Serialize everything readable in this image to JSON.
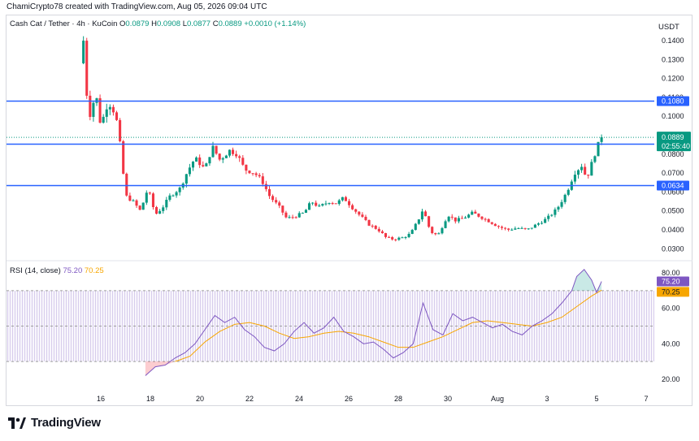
{
  "header": {
    "caption": "ChamiCrypto78 created with TradingView.com, Aug 05, 2026 09:04 UTC"
  },
  "ohlc": {
    "symbol": "Cash Cat / Tether · 4h · KuCoin",
    "o_label": "O",
    "o": "0.0879",
    "h_label": "H",
    "h": "0.0908",
    "l_label": "L",
    "l": "0.0877",
    "c_label": "C",
    "c": "0.0889",
    "change": "+0.0010 (+1.14%)"
  },
  "rsi_title": {
    "label": "RSI (14, close)",
    "rsi": "75.20",
    "ma": "70.25"
  },
  "currency": "USDT",
  "logo_text": "TradingView",
  "colors": {
    "up": "#089981",
    "down": "#f23645",
    "level": "#2962ff",
    "rsi": "#7e57c2",
    "rsi_ma": "#f7a600"
  },
  "chart_data": [
    {
      "type": "candlestick",
      "title": "Cash Cat / Tether · 4h · KuCoin",
      "x_ticks": [
        "16",
        "18",
        "20",
        "22",
        "24",
        "26",
        "28",
        "30",
        "Aug",
        "3",
        "5",
        "7"
      ],
      "y_ticks": [
        "0.1400",
        "0.1300",
        "0.1200",
        "0.1100",
        "0.1000",
        "0.0900",
        "0.0800",
        "0.0700",
        "0.0600",
        "0.0500",
        "0.0400",
        "0.0300"
      ],
      "ylim": [
        0.025,
        0.152
      ],
      "horizontal_levels": [
        {
          "value": 0.108,
          "label": "0.1080"
        },
        {
          "value": 0.0853,
          "label": "0.0853"
        },
        {
          "value": 0.0634,
          "label": "0.0634"
        }
      ],
      "last_price": {
        "value": 0.0889,
        "label": "0.0889",
        "countdown": "02:55:40"
      },
      "close_path": [
        [
          15.3,
          0.14
        ],
        [
          15.5,
          0.098
        ],
        [
          15.8,
          0.112
        ],
        [
          16.0,
          0.095
        ],
        [
          16.3,
          0.108
        ],
        [
          16.6,
          0.101
        ],
        [
          16.8,
          0.083
        ],
        [
          17.0,
          0.058
        ],
        [
          17.3,
          0.055
        ],
        [
          17.6,
          0.05
        ],
        [
          17.9,
          0.062
        ],
        [
          18.2,
          0.048
        ],
        [
          18.5,
          0.052
        ],
        [
          18.8,
          0.058
        ],
        [
          19.2,
          0.062
        ],
        [
          19.5,
          0.071
        ],
        [
          19.8,
          0.078
        ],
        [
          20.2,
          0.072
        ],
        [
          20.5,
          0.084
        ],
        [
          20.8,
          0.077
        ],
        [
          21.2,
          0.082
        ],
        [
          21.5,
          0.08
        ],
        [
          21.8,
          0.072
        ],
        [
          22.2,
          0.07
        ],
        [
          22.5,
          0.066
        ],
        [
          22.8,
          0.058
        ],
        [
          23.2,
          0.052
        ],
        [
          23.5,
          0.046
        ],
        [
          23.8,
          0.047
        ],
        [
          24.2,
          0.049
        ],
        [
          24.5,
          0.055
        ],
        [
          24.8,
          0.052
        ],
        [
          25.2,
          0.055
        ],
        [
          25.5,
          0.054
        ],
        [
          25.8,
          0.057
        ],
        [
          26.2,
          0.051
        ],
        [
          26.5,
          0.047
        ],
        [
          26.8,
          0.043
        ],
        [
          27.2,
          0.04
        ],
        [
          27.5,
          0.036
        ],
        [
          27.8,
          0.035
        ],
        [
          28.2,
          0.036
        ],
        [
          28.5,
          0.038
        ],
        [
          28.8,
          0.045
        ],
        [
          29.0,
          0.051
        ],
        [
          29.3,
          0.039
        ],
        [
          29.6,
          0.037
        ],
        [
          30.0,
          0.048
        ],
        [
          30.3,
          0.045
        ],
        [
          30.6,
          0.046
        ],
        [
          31.0,
          0.049
        ],
        [
          31.3,
          0.047
        ],
        [
          31.6,
          0.045
        ],
        [
          32.0,
          0.042
        ],
        [
          32.4,
          0.04
        ],
        [
          32.8,
          0.041
        ],
        [
          33.2,
          0.04
        ],
        [
          33.6,
          0.043
        ],
        [
          34.0,
          0.046
        ],
        [
          34.4,
          0.051
        ],
        [
          34.8,
          0.06
        ],
        [
          35.1,
          0.07
        ],
        [
          35.4,
          0.074
        ],
        [
          35.6,
          0.067
        ],
        [
          35.8,
          0.075
        ],
        [
          36.0,
          0.083
        ],
        [
          36.2,
          0.0889
        ]
      ],
      "candles": 157
    },
    {
      "type": "line",
      "title": "RSI (14, close)",
      "y_ticks": [
        "80.00",
        "60.00",
        "40.00",
        "20.00"
      ],
      "ylim": [
        14,
        86
      ],
      "band": [
        30,
        70
      ],
      "series": [
        {
          "name": "RSI",
          "values": [
            [
              17.8,
              22
            ],
            [
              18.2,
              27
            ],
            [
              18.6,
              28
            ],
            [
              19.0,
              32
            ],
            [
              19.4,
              35
            ],
            [
              19.8,
              40
            ],
            [
              20.2,
              48
            ],
            [
              20.6,
              56
            ],
            [
              21.0,
              52
            ],
            [
              21.4,
              55
            ],
            [
              21.8,
              48
            ],
            [
              22.2,
              44
            ],
            [
              22.6,
              38
            ],
            [
              23.0,
              36
            ],
            [
              23.4,
              40
            ],
            [
              23.8,
              47
            ],
            [
              24.2,
              52
            ],
            [
              24.6,
              46
            ],
            [
              25.0,
              49
            ],
            [
              25.4,
              55
            ],
            [
              25.8,
              47
            ],
            [
              26.2,
              44
            ],
            [
              26.6,
              40
            ],
            [
              27.0,
              41
            ],
            [
              27.4,
              37
            ],
            [
              27.8,
              32
            ],
            [
              28.2,
              35
            ],
            [
              28.6,
              40
            ],
            [
              29.0,
              63
            ],
            [
              29.4,
              48
            ],
            [
              29.8,
              45
            ],
            [
              30.2,
              57
            ],
            [
              30.6,
              53
            ],
            [
              31.0,
              55
            ],
            [
              31.4,
              52
            ],
            [
              31.8,
              49
            ],
            [
              32.2,
              51
            ],
            [
              32.6,
              47
            ],
            [
              33.0,
              45
            ],
            [
              33.4,
              50
            ],
            [
              33.8,
              53
            ],
            [
              34.2,
              57
            ],
            [
              34.6,
              63
            ],
            [
              35.0,
              70
            ],
            [
              35.2,
              78
            ],
            [
              35.5,
              82
            ],
            [
              35.8,
              76
            ],
            [
              36.0,
              69
            ],
            [
              36.2,
              75.2
            ]
          ]
        },
        {
          "name": "RSI-based MA",
          "values": [
            [
              19.0,
              30
            ],
            [
              19.6,
              33
            ],
            [
              20.2,
              41
            ],
            [
              20.8,
              47
            ],
            [
              21.4,
              51
            ],
            [
              22.0,
              52
            ],
            [
              22.6,
              50
            ],
            [
              23.2,
              46
            ],
            [
              23.8,
              43
            ],
            [
              24.4,
              44
            ],
            [
              25.0,
              46
            ],
            [
              25.6,
              47
            ],
            [
              26.2,
              46
            ],
            [
              26.8,
              44
            ],
            [
              27.4,
              41
            ],
            [
              28.0,
              38
            ],
            [
              28.6,
              38
            ],
            [
              29.2,
              41
            ],
            [
              29.8,
              44
            ],
            [
              30.4,
              48
            ],
            [
              31.0,
              52
            ],
            [
              31.6,
              53
            ],
            [
              32.2,
              52
            ],
            [
              32.8,
              51
            ],
            [
              33.4,
              50
            ],
            [
              34.0,
              52
            ],
            [
              34.6,
              55
            ],
            [
              35.2,
              61
            ],
            [
              35.8,
              67
            ],
            [
              36.2,
              70.25
            ]
          ]
        }
      ]
    }
  ]
}
